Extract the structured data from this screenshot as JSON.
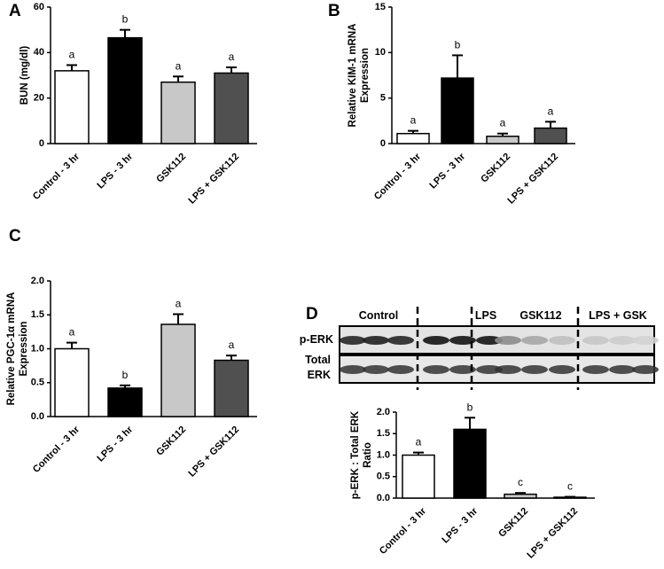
{
  "chart_data": [
    {
      "type": "bar",
      "panel": "A",
      "ylabel": [
        "BUN (mg/dl)"
      ],
      "categories": [
        "Control - 3 hr",
        "LPS - 3 hr",
        "GSK112",
        "LPS + GSK112"
      ],
      "values": [
        32,
        46.5,
        27,
        31
      ],
      "errors": [
        2.5,
        3.5,
        2.5,
        2.5
      ],
      "annotations": [
        "a",
        "b",
        "a",
        "a"
      ],
      "colors": [
        "#ffffff",
        "#000000",
        "#c8c8c8",
        "#505050"
      ],
      "ylim": [
        0,
        60
      ],
      "yticks": [
        0,
        20,
        40,
        60
      ]
    },
    {
      "type": "bar",
      "panel": "B",
      "ylabel": [
        "Relative KIM-1 mRNA",
        "Expression"
      ],
      "categories": [
        "Control - 3 hr",
        "LPS - 3 hr",
        "GSK112",
        "LPS + GSK112"
      ],
      "values": [
        1.1,
        7.2,
        0.8,
        1.7
      ],
      "errors": [
        0.3,
        2.5,
        0.3,
        0.7
      ],
      "annotations": [
        "a",
        "b",
        "a",
        "a"
      ],
      "colors": [
        "#ffffff",
        "#000000",
        "#c8c8c8",
        "#505050"
      ],
      "ylim": [
        0,
        15
      ],
      "yticks": [
        0,
        5,
        10,
        15
      ]
    },
    {
      "type": "bar",
      "panel": "C",
      "ylabel": [
        "Relative PGC-1α mRNA",
        "Expression"
      ],
      "categories": [
        "Control - 3 hr",
        "LPS - 3 hr",
        "GSK112",
        "LPS + GSK112"
      ],
      "values": [
        1.0,
        0.42,
        1.36,
        0.83
      ],
      "errors": [
        0.09,
        0.04,
        0.15,
        0.07
      ],
      "annotations": [
        "a",
        "b",
        "a",
        "a"
      ],
      "colors": [
        "#ffffff",
        "#000000",
        "#c8c8c8",
        "#505050"
      ],
      "ylim": [
        0,
        2
      ],
      "yticks": [
        {
          "value": 0,
          "label": "0.0"
        },
        {
          "value": 0.5,
          "label": "0.5"
        },
        {
          "value": 1,
          "label": "1.0"
        },
        {
          "value": 1.5,
          "label": "1.5"
        },
        {
          "value": 2,
          "label": "2.0"
        }
      ]
    },
    {
      "type": "bar",
      "panel": "D",
      "ylabel": [
        "p-ERK : Total ERK",
        "Ratio"
      ],
      "categories": [
        "Control - 3 hr",
        "LPS - 3 hr",
        "GSK112",
        "LPS + GSK112"
      ],
      "values": [
        1.0,
        1.6,
        0.09,
        0.02
      ],
      "errors": [
        0.06,
        0.27,
        0.03,
        0.01
      ],
      "annotations": [
        "a",
        "b",
        "c",
        "c"
      ],
      "colors": [
        "#ffffff",
        "#000000",
        "#c8c8c8",
        "#505050"
      ],
      "ylim": [
        0,
        2
      ],
      "yticks": [
        {
          "value": 0,
          "label": "0.0"
        },
        {
          "value": 0.5,
          "label": "0.5"
        },
        {
          "value": 1,
          "label": "1.0"
        },
        {
          "value": 1.5,
          "label": "1.5"
        },
        {
          "value": 2,
          "label": "2.0"
        }
      ]
    }
  ],
  "blot": {
    "lanes": [
      "Control",
      "LPS",
      "GSK112",
      "LPS + GSK"
    ],
    "rows": [
      [
        "p-ERK"
      ],
      [
        "Total",
        "ERK"
      ]
    ]
  }
}
